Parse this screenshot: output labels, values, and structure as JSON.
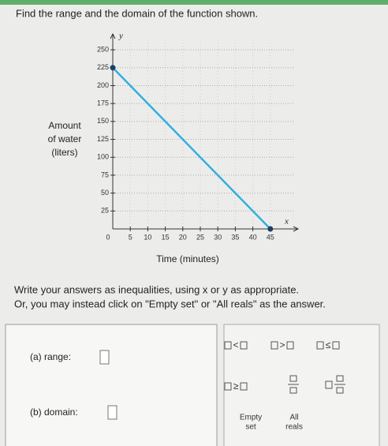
{
  "question": "Find the range and the domain of the function shown.",
  "chart_data": {
    "type": "line",
    "x_label": "Time (minutes)",
    "y_label_lines": [
      "Amount",
      "of water",
      "(liters)"
    ],
    "x_symbol": "x",
    "y_symbol": "y",
    "origin_label": "0",
    "x": [
      0,
      45
    ],
    "series": [
      {
        "color": "#34aee0",
        "values": [
          225,
          0
        ]
      }
    ],
    "marker_color": "#1d3f66",
    "xlim": [
      0,
      50
    ],
    "ylim": [
      0,
      260
    ],
    "xticks": [
      5,
      10,
      15,
      20,
      25,
      30,
      35,
      40,
      45
    ],
    "yticks": [
      25,
      50,
      75,
      100,
      125,
      150,
      175,
      200,
      225,
      250
    ],
    "grid": true
  },
  "instructions": [
    "Write your answers as inequalities, using x or y as appropriate.",
    "Or, you may instead click on \"Empty set\" or \"All reals\" as the answer."
  ],
  "answers": {
    "range_label": "(a) range:",
    "domain_label": "(b) domain:"
  },
  "keypad": {
    "operators": [
      "<",
      ">",
      "≤",
      "≥"
    ],
    "empty_set": [
      "Empty",
      "set"
    ],
    "all_reals": [
      "All",
      "reals"
    ]
  }
}
